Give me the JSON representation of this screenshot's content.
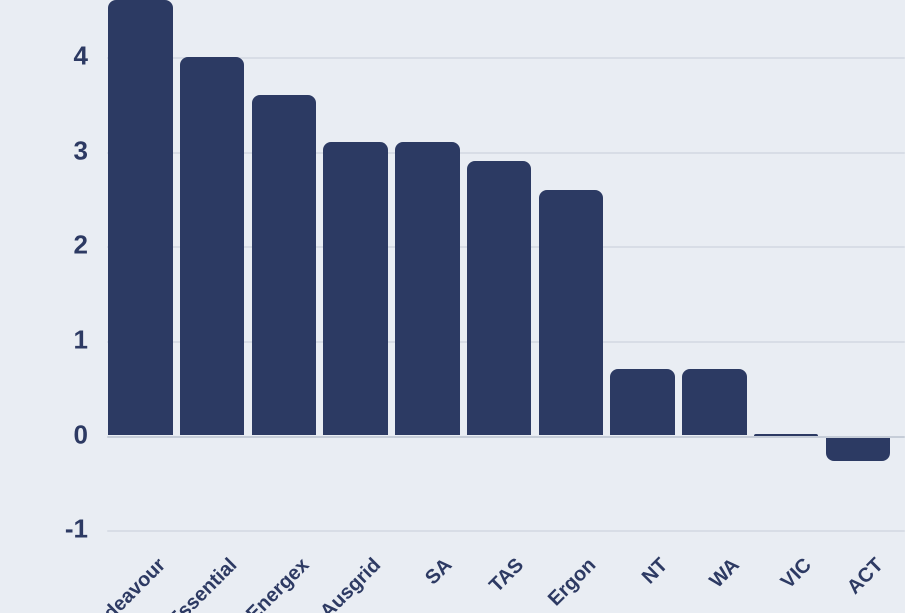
{
  "chart_data": {
    "type": "bar",
    "title": "",
    "xlabel": "",
    "ylabel": "",
    "categories": [
      "Endeavour",
      "Essential",
      "Energex",
      "Ausgrid",
      "SA",
      "TAS",
      "Ergon",
      "NT",
      "WA",
      "VIC",
      "ACT"
    ],
    "values": [
      4.6,
      4.0,
      3.6,
      3.1,
      3.1,
      2.9,
      2.6,
      0.7,
      0.7,
      0.02,
      -0.26
    ],
    "y_ticks": [
      4,
      3,
      2,
      1,
      0,
      -1
    ],
    "y_tick_labels": [
      "4",
      "3",
      "2",
      "1",
      "0",
      "-1"
    ],
    "ylim": [
      -1.35,
      4.62
    ],
    "grid": true,
    "legend_position": "none",
    "x_label_rotation_deg": 45,
    "colors": {
      "bar": "#2c3a63",
      "tick_text": "#2d3a63",
      "gridline": "#d8dde6",
      "zero_line": "#c6cdd8",
      "background": "#e9edf3"
    }
  }
}
